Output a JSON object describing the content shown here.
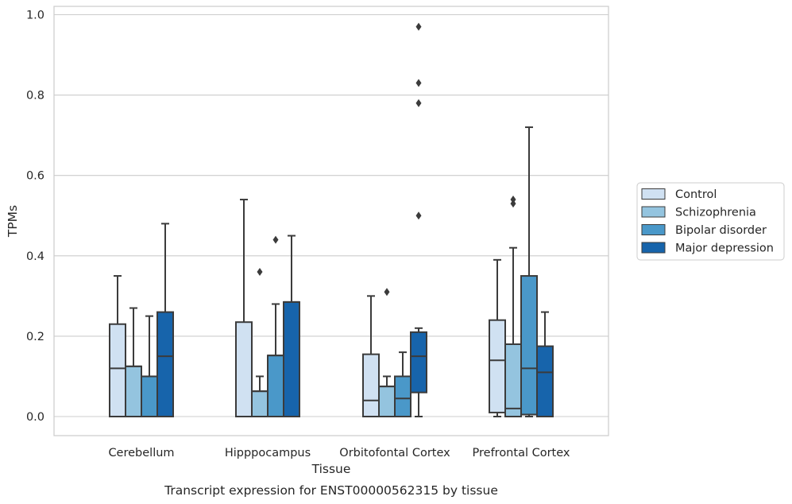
{
  "chart_data": {
    "type": "boxplot",
    "title": "Transcript expression for ENST00000562315 by tissue",
    "xlabel": "Tissue",
    "ylabel": "TPMs",
    "ylim": [
      -0.045,
      1.02
    ],
    "yticks": [
      "0.0",
      "0.2",
      "0.4",
      "0.6",
      "0.8",
      "1.0"
    ],
    "grid": true,
    "legend_placement": "right",
    "categories": [
      "Cerebellum",
      "Hipppocampus",
      "Orbitofontal Cortex",
      "Prefrontal Cortex"
    ],
    "series": [
      {
        "name": "Control",
        "color": "#d0e1f2",
        "boxes": [
          {
            "whislo": 0.0,
            "q1": 0.0,
            "med": 0.12,
            "q3": 0.23,
            "whishi": 0.35,
            "fliers": []
          },
          {
            "whislo": 0.0,
            "q1": 0.0,
            "med": 0.0,
            "q3": 0.235,
            "whishi": 0.54,
            "fliers": []
          },
          {
            "whislo": 0.0,
            "q1": 0.0,
            "med": 0.04,
            "q3": 0.155,
            "whishi": 0.3,
            "fliers": []
          },
          {
            "whislo": 0.0,
            "q1": 0.01,
            "med": 0.14,
            "q3": 0.24,
            "whishi": 0.39,
            "fliers": []
          }
        ]
      },
      {
        "name": "Schizophrenia",
        "color": "#94c4df",
        "boxes": [
          {
            "whislo": 0.0,
            "q1": 0.0,
            "med": 0.125,
            "q3": 0.125,
            "whishi": 0.27,
            "fliers": []
          },
          {
            "whislo": 0.0,
            "q1": 0.0,
            "med": 0.063,
            "q3": 0.063,
            "whishi": 0.1,
            "fliers": [
              0.36
            ]
          },
          {
            "whislo": 0.0,
            "q1": 0.0,
            "med": 0.075,
            "q3": 0.075,
            "whishi": 0.1,
            "fliers": [
              0.31
            ]
          },
          {
            "whislo": 0.0,
            "q1": 0.0,
            "med": 0.02,
            "q3": 0.18,
            "whishi": 0.42,
            "fliers": [
              0.53,
              0.54
            ]
          }
        ]
      },
      {
        "name": "Bipolar disorder",
        "color": "#4a98c9",
        "boxes": [
          {
            "whislo": 0.0,
            "q1": 0.0,
            "med": 0.1,
            "q3": 0.1,
            "whishi": 0.25,
            "fliers": []
          },
          {
            "whislo": 0.0,
            "q1": 0.0,
            "med": 0.152,
            "q3": 0.152,
            "whishi": 0.28,
            "fliers": [
              0.44
            ]
          },
          {
            "whislo": 0.0,
            "q1": 0.0,
            "med": 0.045,
            "q3": 0.1,
            "whishi": 0.16,
            "fliers": []
          },
          {
            "whislo": 0.0,
            "q1": 0.005,
            "med": 0.12,
            "q3": 0.35,
            "whishi": 0.72,
            "fliers": []
          }
        ]
      },
      {
        "name": "Major depression",
        "color": "#1764ab",
        "boxes": [
          {
            "whislo": 0.0,
            "q1": 0.0,
            "med": 0.15,
            "q3": 0.26,
            "whishi": 0.48,
            "fliers": []
          },
          {
            "whislo": 0.0,
            "q1": 0.0,
            "med": 0.285,
            "q3": 0.285,
            "whishi": 0.45,
            "fliers": []
          },
          {
            "whislo": 0.0,
            "q1": 0.06,
            "med": 0.15,
            "q3": 0.21,
            "whishi": 0.22,
            "fliers": [
              0.5,
              0.78,
              0.83,
              0.97
            ]
          },
          {
            "whislo": 0.0,
            "q1": 0.0,
            "med": 0.11,
            "q3": 0.175,
            "whishi": 0.26,
            "fliers": []
          }
        ]
      }
    ]
  }
}
